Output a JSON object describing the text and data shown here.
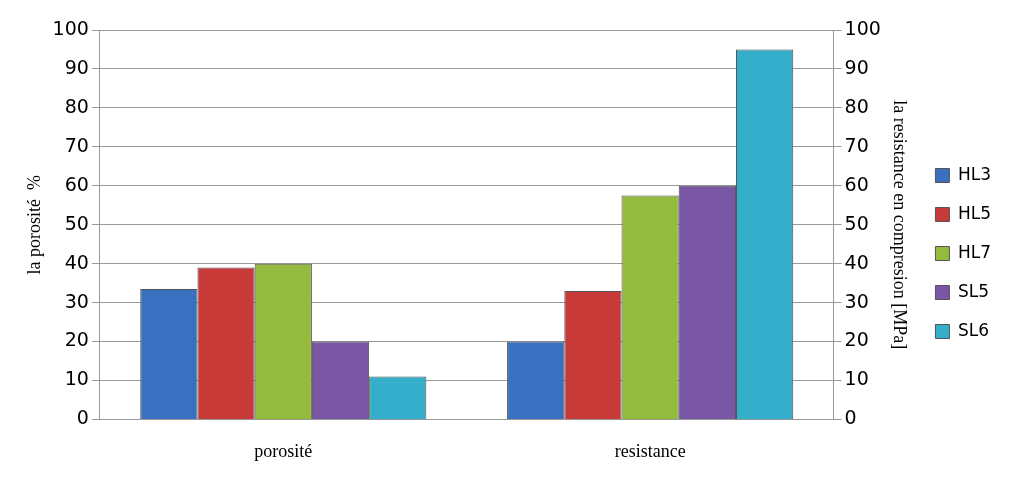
{
  "chart_data": {
    "type": "bar",
    "categories": [
      "porosité",
      "resistance"
    ],
    "series": [
      {
        "name": "HL3",
        "color": "#3a70c0",
        "values": [
          33.5,
          20
        ]
      },
      {
        "name": "HL5",
        "color": "#c83a38",
        "values": [
          39,
          33
        ]
      },
      {
        "name": "HL7",
        "color": "#95bb3e",
        "values": [
          40,
          57.5
        ]
      },
      {
        "name": "SL5",
        "color": "#7a56a6",
        "values": [
          20,
          60
        ]
      },
      {
        "name": "SL6",
        "color": "#34aecb",
        "values": [
          11,
          95
        ]
      }
    ],
    "ylabel": "la porosité  %",
    "y2label": "la resistance en compresion [MPa]",
    "ylim": [
      0,
      100
    ],
    "yticks": [
      0,
      10,
      20,
      30,
      40,
      50,
      60,
      70,
      80,
      90,
      100
    ],
    "y2lim": [
      0,
      100
    ],
    "y2ticks": [
      0,
      10,
      20,
      30,
      40,
      50,
      60,
      70,
      80,
      90,
      100
    ],
    "grid": "y",
    "legend": "right"
  }
}
